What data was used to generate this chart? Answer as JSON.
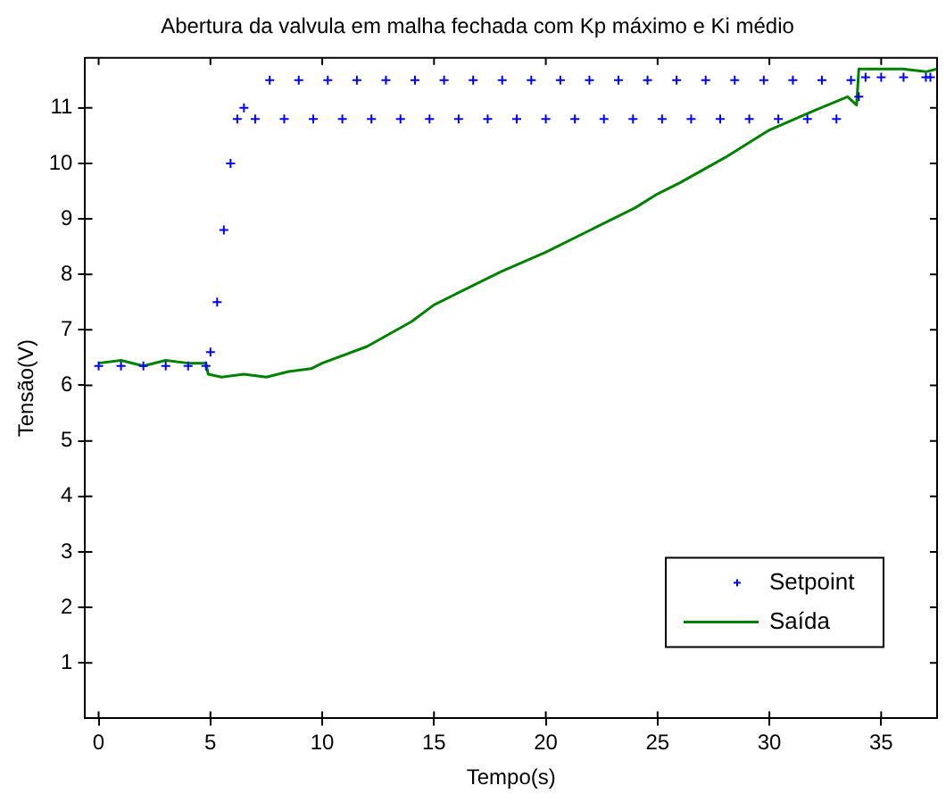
{
  "chart_data": {
    "type": "line",
    "title": "Abertura da valvula em malha fechada com Kp máximo e Ki médio",
    "xlabel": "Tempo(s)",
    "ylabel": "Tensão(V)",
    "xlim": [
      -0.6,
      37.5
    ],
    "xticks": [
      0,
      5,
      10,
      15,
      20,
      25,
      30,
      35
    ],
    "ylim": [
      0,
      11.9
    ],
    "yticks": [
      1,
      2,
      3,
      4,
      5,
      6,
      7,
      8,
      9,
      10,
      11
    ],
    "grid": false,
    "legend": "bottom right",
    "series": [
      {
        "name": "Setpoint",
        "type": "scatter",
        "marker": "cross",
        "color": "#0000ff",
        "x": [
          0,
          1,
          2,
          3,
          4,
          4.8,
          5.0,
          5.3,
          5.6,
          5.9,
          6.2,
          6.5,
          7.0,
          7.65,
          8.3,
          8.95,
          9.6,
          10.25,
          10.9,
          11.55,
          12.2,
          12.85,
          13.5,
          14.15,
          14.8,
          15.45,
          16.1,
          16.75,
          17.4,
          18.05,
          18.7,
          19.35,
          20.0,
          20.65,
          21.3,
          21.95,
          22.6,
          23.25,
          23.9,
          24.55,
          25.2,
          25.85,
          26.5,
          27.15,
          27.8,
          28.45,
          29.1,
          29.75,
          30.4,
          31.05,
          31.7,
          32.35,
          33.0,
          33.65,
          34.0,
          34.3,
          35,
          36,
          37,
          37.2
        ],
        "values": [
          6.35,
          6.35,
          6.35,
          6.35,
          6.35,
          6.35,
          6.6,
          7.5,
          8.8,
          10.0,
          10.8,
          11.0,
          10.8,
          11.5,
          10.8,
          11.5,
          10.8,
          11.5,
          10.8,
          11.5,
          10.8,
          11.5,
          10.8,
          11.5,
          10.8,
          11.5,
          10.8,
          11.5,
          10.8,
          11.5,
          10.8,
          11.5,
          10.8,
          11.5,
          10.8,
          11.5,
          10.8,
          11.5,
          10.8,
          11.5,
          10.8,
          11.5,
          10.8,
          11.5,
          10.8,
          11.5,
          10.8,
          11.5,
          10.8,
          11.5,
          10.8,
          11.5,
          10.8,
          11.5,
          11.2,
          11.55,
          11.55,
          11.55,
          11.55,
          11.55
        ]
      },
      {
        "name": "Saída",
        "type": "line",
        "line_style": "solid",
        "color": "#008000",
        "x": [
          0,
          1,
          2,
          3,
          4,
          4.8,
          4.9,
          5.5,
          6.5,
          7.5,
          8.5,
          9.5,
          10,
          12,
          14,
          15,
          16,
          18,
          20,
          22,
          24,
          25,
          26,
          28,
          30,
          32,
          33.5,
          33.9,
          34.0,
          35,
          36,
          37,
          37.5
        ],
        "values": [
          6.4,
          6.45,
          6.35,
          6.45,
          6.4,
          6.4,
          6.2,
          6.15,
          6.2,
          6.15,
          6.25,
          6.3,
          6.4,
          6.7,
          7.15,
          7.45,
          7.65,
          8.05,
          8.4,
          8.8,
          9.2,
          9.45,
          9.65,
          10.1,
          10.6,
          10.95,
          11.2,
          11.05,
          11.7,
          11.7,
          11.7,
          11.65,
          11.7
        ]
      }
    ]
  }
}
